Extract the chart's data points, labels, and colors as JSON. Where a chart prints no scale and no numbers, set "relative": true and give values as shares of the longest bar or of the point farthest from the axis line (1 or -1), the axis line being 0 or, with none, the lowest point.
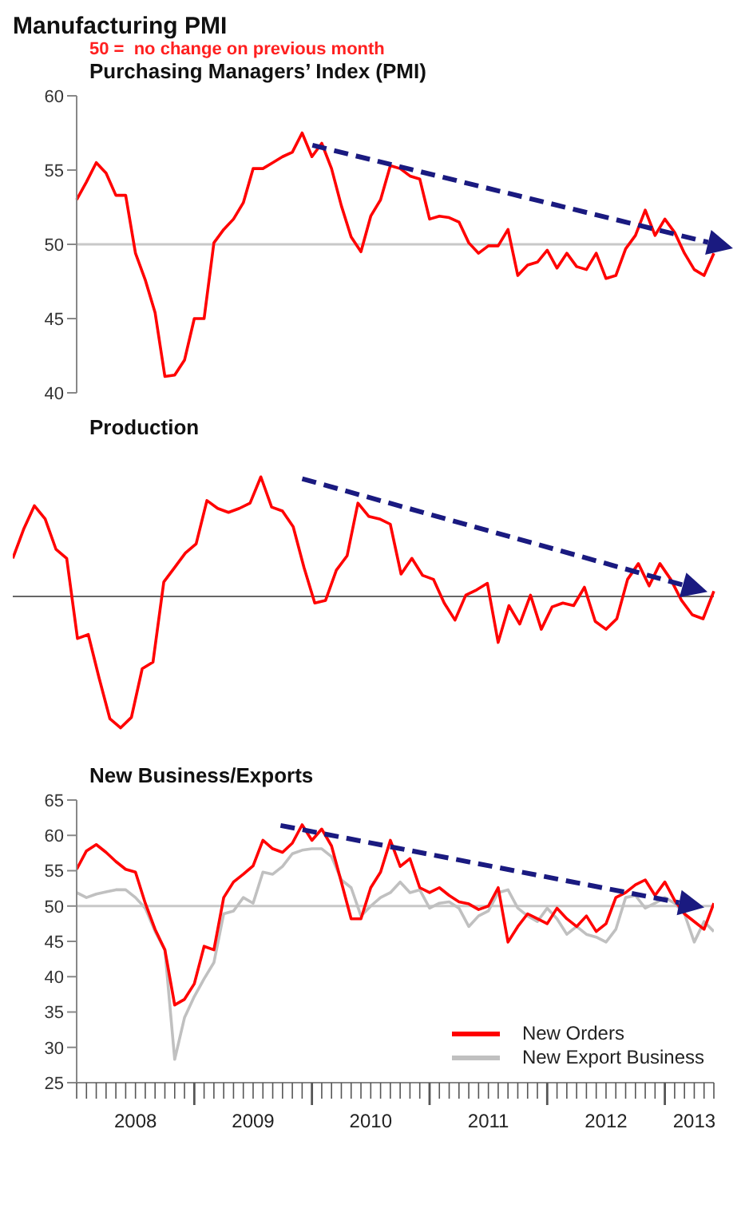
{
  "chart_data": [
    {
      "type": "line",
      "title": "Manufacturing PMI",
      "subtitle": "Purchasing Managers’ Index (PMI)",
      "annotations": [
        "50 =  no change on previous month"
      ],
      "categories": [
        null,
        null,
        null,
        null,
        null,
        null,
        null,
        null,
        null,
        null,
        null,
        null,
        null,
        null,
        null,
        null,
        null,
        null,
        null,
        null,
        null,
        null,
        null,
        null,
        null,
        null,
        null,
        null,
        null,
        null,
        null,
        null,
        null,
        null,
        null,
        null,
        null,
        null,
        null,
        null,
        null,
        null,
        null,
        null,
        null,
        null,
        null,
        null,
        null,
        null,
        null,
        null,
        null,
        null,
        null,
        null,
        null,
        null,
        null,
        null,
        null,
        null,
        null,
        null,
        null,
        null
      ],
      "series": [
        {
          "color": "#ff0000",
          "values": [
            53.0,
            54.2,
            55.5,
            54.8,
            53.3,
            53.3,
            49.4,
            47.6,
            45.4,
            41.1,
            41.2,
            42.2,
            45.0,
            45.0,
            50.1,
            51.0,
            51.7,
            52.8,
            55.1,
            55.1,
            55.5,
            55.9,
            56.2,
            57.5,
            55.9,
            56.8,
            55.1,
            52.6,
            50.5,
            49.5,
            51.9,
            53.0,
            55.3,
            55.1,
            54.6,
            54.4,
            51.7,
            51.9,
            51.8,
            51.5,
            50.1,
            49.4,
            49.9,
            49.9,
            51.0,
            47.9,
            48.6,
            48.8,
            49.6,
            48.4,
            49.4,
            48.5,
            48.3,
            49.4,
            47.7,
            47.9,
            49.7,
            50.6,
            52.3,
            50.6,
            51.7,
            50.8,
            49.4,
            48.3,
            47.9,
            49.4
          ]
        }
      ],
      "ylim": [
        40,
        60
      ],
      "yticks": [
        40,
        45,
        50,
        55,
        60
      ],
      "tick_labels": "y",
      "ref_lines": [
        {
          "axis": "y",
          "value": 50,
          "color": "#c8c8c8"
        }
      ]
    },
    {
      "type": "line",
      "title": "Production",
      "relative": true,
      "tick_labels": false,
      "categories": [
        null,
        null,
        null,
        null,
        null,
        null,
        null,
        null,
        null,
        null,
        null,
        null,
        null,
        null,
        null,
        null,
        null,
        null,
        null,
        null,
        null,
        null,
        null,
        null,
        null,
        null,
        null,
        null,
        null,
        null,
        null,
        null,
        null,
        null,
        null,
        null,
        null,
        null,
        null,
        null,
        null,
        null,
        null,
        null,
        null,
        null,
        null,
        null,
        null,
        null,
        null,
        null,
        null,
        null,
        null,
        null,
        null,
        null,
        null,
        null,
        null,
        null,
        null,
        null,
        null,
        null
      ],
      "series": [
        {
          "color": "#ff0000",
          "values": [
            0.29,
            0.51,
            0.69,
            0.59,
            0.36,
            0.29,
            -0.32,
            -0.29,
            -0.62,
            -0.93,
            -1,
            -0.92,
            -0.55,
            -0.5,
            0.11,
            0.22,
            0.33,
            0.4,
            0.73,
            0.67,
            0.64,
            0.67,
            0.71,
            0.91,
            0.68,
            0.65,
            0.53,
            0.22,
            -0.05,
            -0.03,
            0.2,
            0.31,
            0.71,
            0.61,
            0.59,
            0.55,
            0.17,
            0.29,
            0.16,
            0.13,
            -0.05,
            -0.18,
            0.01,
            0.05,
            0.1,
            -0.35,
            -0.07,
            -0.21,
            0.01,
            -0.25,
            -0.08,
            -0.05,
            -0.07,
            0.07,
            -0.19,
            -0.25,
            -0.17,
            0.13,
            0.25,
            0.08,
            0.25,
            0.13,
            -0.03,
            -0.14,
            -0.17,
            0.04
          ]
        }
      ]
    },
    {
      "type": "line",
      "title": "New Business/Exports",
      "legend": "bottom right",
      "x": [
        "2008-01",
        "2008-02",
        "2008-03",
        "2008-04",
        "2008-05",
        "2008-06",
        "2008-07",
        "2008-08",
        "2008-09",
        "2008-10",
        "2008-11",
        "2008-12",
        "2009-01",
        "2009-02",
        "2009-03",
        "2009-04",
        "2009-05",
        "2009-06",
        "2009-07",
        "2009-08",
        "2009-09",
        "2009-10",
        "2009-11",
        "2009-12",
        "2010-01",
        "2010-02",
        "2010-03",
        "2010-04",
        "2010-05",
        "2010-06",
        "2010-07",
        "2010-08",
        "2010-09",
        "2010-10",
        "2010-11",
        "2010-12",
        "2011-01",
        "2011-02",
        "2011-03",
        "2011-04",
        "2011-05",
        "2011-06",
        "2011-07",
        "2011-08",
        "2011-09",
        "2011-10",
        "2011-11",
        "2011-12",
        "2012-01",
        "2012-02",
        "2012-03",
        "2012-04",
        "2012-05",
        "2012-06",
        "2012-07",
        "2012-08",
        "2012-09",
        "2012-10",
        "2012-11",
        "2012-12",
        "2013-01",
        "2013-02",
        "2013-03",
        "2013-04",
        "2013-05",
        "2013-06"
      ],
      "series": [
        {
          "name": "New Orders",
          "color": "#ff0000",
          "values": [
            55.2,
            57.8,
            58.7,
            57.6,
            56.3,
            55.2,
            54.8,
            50.4,
            46.7,
            43.8,
            36.0,
            36.8,
            39.0,
            44.3,
            43.8,
            51.2,
            53.4,
            54.5,
            55.7,
            59.3,
            58.1,
            57.6,
            58.9,
            61.5,
            59.3,
            60.9,
            58.5,
            53.4,
            48.2,
            48.2,
            52.6,
            54.8,
            59.3,
            55.6,
            56.7,
            52.6,
            51.9,
            52.6,
            51.5,
            50.6,
            50.3,
            49.5,
            50.0,
            52.6,
            44.9,
            47.1,
            48.9,
            48.2,
            47.5,
            49.7,
            48.2,
            47.1,
            48.6,
            46.4,
            47.5,
            51.2,
            51.9,
            53.0,
            53.7,
            51.5,
            53.4,
            50.8,
            48.9,
            47.8,
            46.7,
            50.4
          ]
        },
        {
          "name": "New Export Business",
          "color": "#c0c0c0",
          "values": [
            51.9,
            51.2,
            51.7,
            52.0,
            52.3,
            52.3,
            51.2,
            49.7,
            46.4,
            43.8,
            28.3,
            34.2,
            37.2,
            39.7,
            42.0,
            48.9,
            49.3,
            51.2,
            50.4,
            54.8,
            54.5,
            55.6,
            57.4,
            57.9,
            58.1,
            58.1,
            57.0,
            53.7,
            52.6,
            48.6,
            50.0,
            51.2,
            51.9,
            53.4,
            51.9,
            52.3,
            49.7,
            50.4,
            50.6,
            49.7,
            47.1,
            48.6,
            49.3,
            51.9,
            52.3,
            49.7,
            48.6,
            47.8,
            49.7,
            48.2,
            46.0,
            47.1,
            46.0,
            45.6,
            44.9,
            46.7,
            51.2,
            51.5,
            49.7,
            50.4,
            51.2,
            50.4,
            48.9,
            44.9,
            47.8,
            46.4
          ]
        }
      ],
      "xlim": [
        "2008-01",
        "2013-06"
      ],
      "ylim": [
        25,
        65
      ],
      "yticks": [
        25,
        30,
        35,
        40,
        45,
        50,
        55,
        60,
        65
      ],
      "xticks": [
        {
          "value": "2008-07",
          "label": "2008"
        },
        {
          "value": "2009-07",
          "label": "2009"
        },
        {
          "value": "2010-07",
          "label": "2010"
        },
        {
          "value": "2011-07",
          "label": "2011"
        },
        {
          "value": "2012-07",
          "label": "2012"
        },
        {
          "value": "2013-04",
          "label": "2013"
        }
      ],
      "ref_lines": [
        {
          "axis": "y",
          "value": 50,
          "color": "#c8c8c8"
        }
      ]
    }
  ]
}
